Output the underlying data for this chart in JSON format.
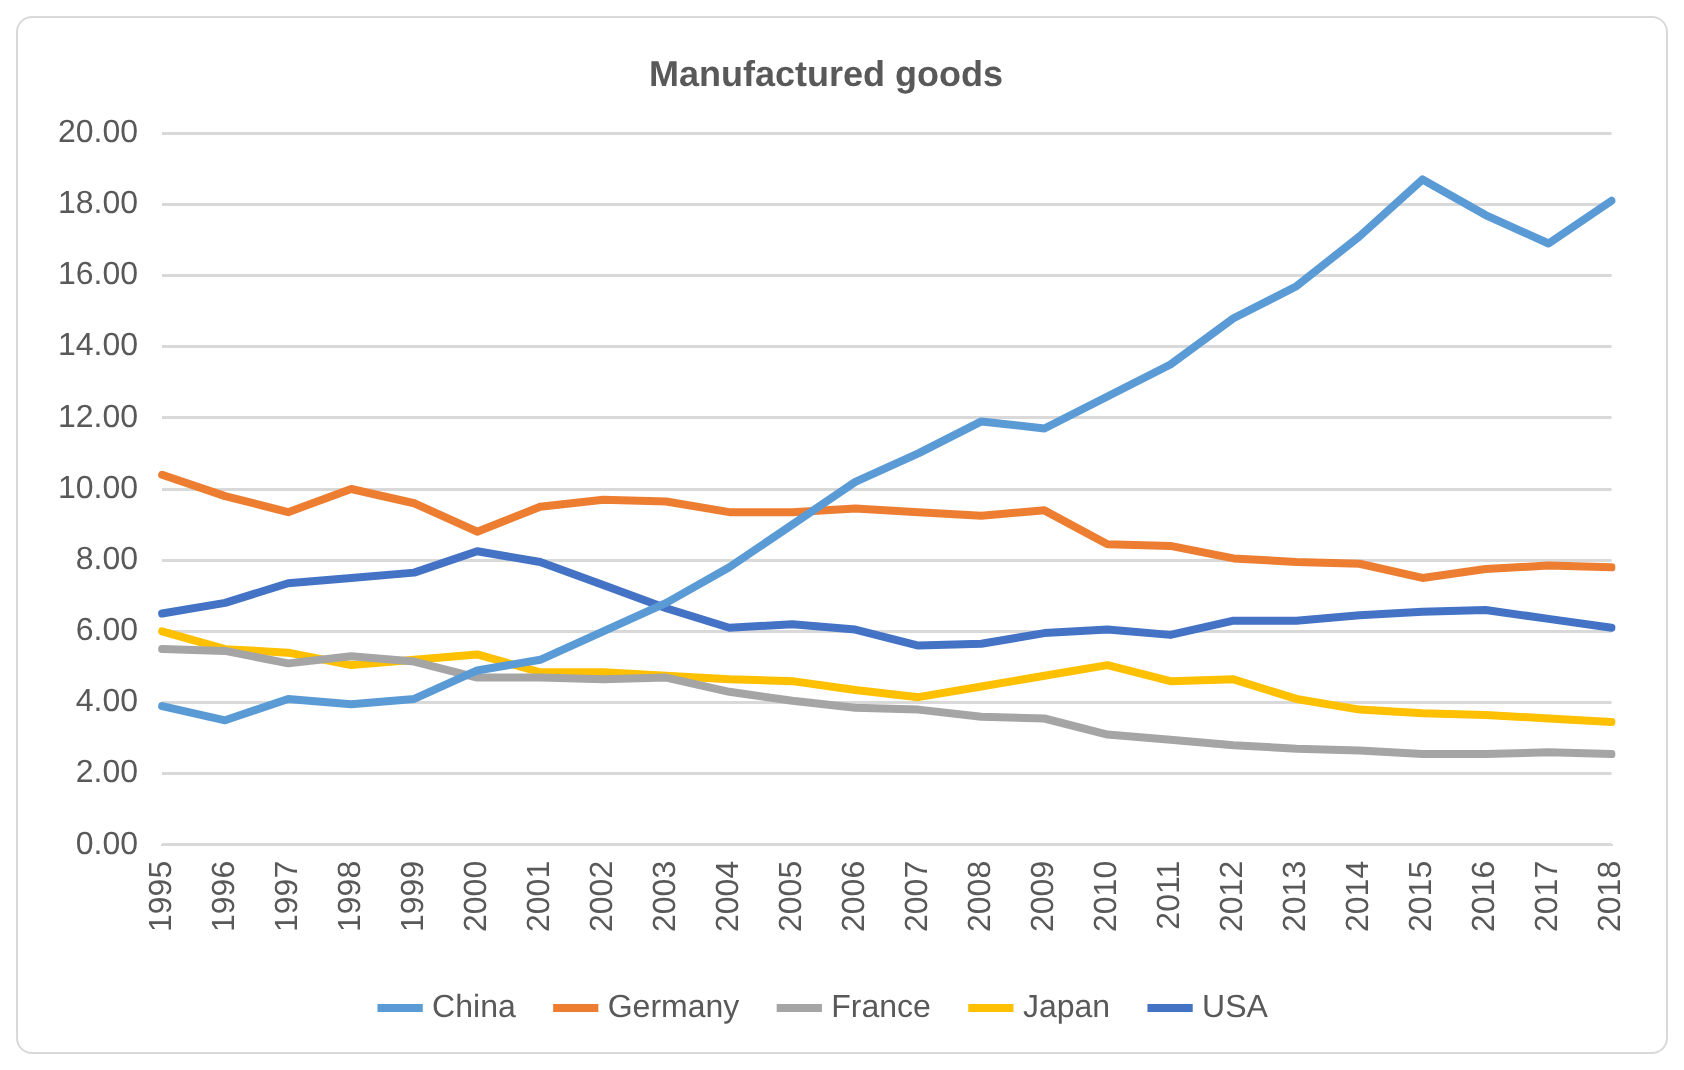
{
  "chart_data": {
    "type": "line",
    "title": "Manufactured goods",
    "categories": [
      "1995",
      "1996",
      "1997",
      "1998",
      "1999",
      "2000",
      "2001",
      "2002",
      "2003",
      "2004",
      "2005",
      "2006",
      "2007",
      "2008",
      "2009",
      "2010",
      "2011",
      "2012",
      "2013",
      "2014",
      "2015",
      "2016",
      "2017",
      "2018"
    ],
    "series": [
      {
        "name": "China",
        "color": "#5b9bd5",
        "values": [
          3.9,
          3.5,
          4.1,
          3.95,
          4.1,
          4.9,
          5.2,
          6.0,
          6.8,
          7.8,
          9.0,
          10.2,
          11.0,
          11.9,
          11.7,
          12.6,
          13.5,
          14.8,
          15.7,
          17.1,
          18.7,
          17.7,
          16.9,
          18.1
        ]
      },
      {
        "name": "Germany",
        "color": "#ed7d31",
        "values": [
          10.4,
          9.8,
          9.35,
          10.0,
          9.6,
          8.8,
          9.5,
          9.7,
          9.65,
          9.35,
          9.35,
          9.45,
          9.35,
          9.25,
          9.4,
          8.45,
          8.4,
          8.05,
          7.95,
          7.9,
          7.5,
          7.75,
          7.85,
          7.8
        ]
      },
      {
        "name": "France",
        "color": "#a5a5a5",
        "values": [
          5.5,
          5.45,
          5.1,
          5.3,
          5.15,
          4.7,
          4.7,
          4.65,
          4.7,
          4.3,
          4.05,
          3.85,
          3.8,
          3.6,
          3.55,
          3.1,
          2.95,
          2.8,
          2.7,
          2.65,
          2.55,
          2.55,
          2.6,
          2.55
        ]
      },
      {
        "name": "Japan",
        "color": "#ffc000",
        "values": [
          6.0,
          5.5,
          5.4,
          5.05,
          5.2,
          5.35,
          4.85,
          4.85,
          4.75,
          4.65,
          4.6,
          4.35,
          4.15,
          4.45,
          4.75,
          5.05,
          4.6,
          4.65,
          4.1,
          3.8,
          3.7,
          3.65,
          3.55,
          3.45
        ]
      },
      {
        "name": "USA",
        "color": "#4472c4",
        "values": [
          6.5,
          6.8,
          7.35,
          7.5,
          7.65,
          8.25,
          7.95,
          7.3,
          6.65,
          6.1,
          6.2,
          6.05,
          5.6,
          5.65,
          5.95,
          6.05,
          5.9,
          6.3,
          6.3,
          6.45,
          6.55,
          6.6,
          6.35,
          6.1
        ]
      }
    ],
    "ylim": [
      0,
      20
    ],
    "yticks": [
      {
        "value": 0,
        "label": "0.00"
      },
      {
        "value": 2,
        "label": "2.00"
      },
      {
        "value": 4,
        "label": "4.00"
      },
      {
        "value": 6,
        "label": "6.00"
      },
      {
        "value": 8,
        "label": "8.00"
      },
      {
        "value": 10,
        "label": "10.00"
      },
      {
        "value": 12,
        "label": "12.00"
      },
      {
        "value": 14,
        "label": "14.00"
      },
      {
        "value": 16,
        "label": "16.00"
      },
      {
        "value": 18,
        "label": "18.00"
      },
      {
        "value": 20,
        "label": "20.00"
      }
    ],
    "grid": "y",
    "legend": "bottom",
    "marker": "none",
    "line_style": "solid"
  }
}
